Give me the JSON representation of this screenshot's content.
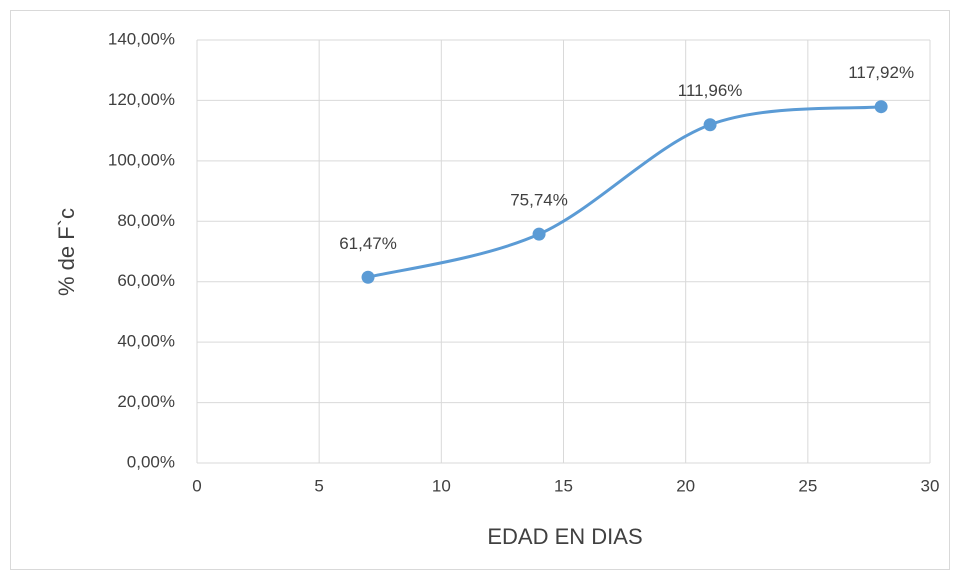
{
  "chart_data": {
    "type": "line",
    "smooth": true,
    "x_label": "EDAD EN DIAS",
    "y_label": "% de F`c",
    "x": [
      7,
      14,
      21,
      28
    ],
    "series": [
      {
        "color": "#5b9bd5",
        "values": [
          61.47,
          75.74,
          111.96,
          117.92
        ],
        "value_labels": [
          "61,47%",
          "75,74%",
          "111,96%",
          "117,92%"
        ]
      }
    ],
    "xlim": [
      0,
      30
    ],
    "xticks": [
      0,
      5,
      10,
      15,
      20,
      25,
      30
    ],
    "ylim": [
      0,
      140
    ],
    "yticks": [
      {
        "value": 0,
        "label": "0,00%"
      },
      {
        "value": 20,
        "label": "20,00%"
      },
      {
        "value": 40,
        "label": "40,00%"
      },
      {
        "value": 60,
        "label": "60,00%"
      },
      {
        "value": 80,
        "label": "80,00%"
      },
      {
        "value": 100,
        "label": "100,00%"
      },
      {
        "value": 120,
        "label": "120,00%"
      },
      {
        "value": 140,
        "label": "140,00%"
      }
    ],
    "grid": true
  }
}
